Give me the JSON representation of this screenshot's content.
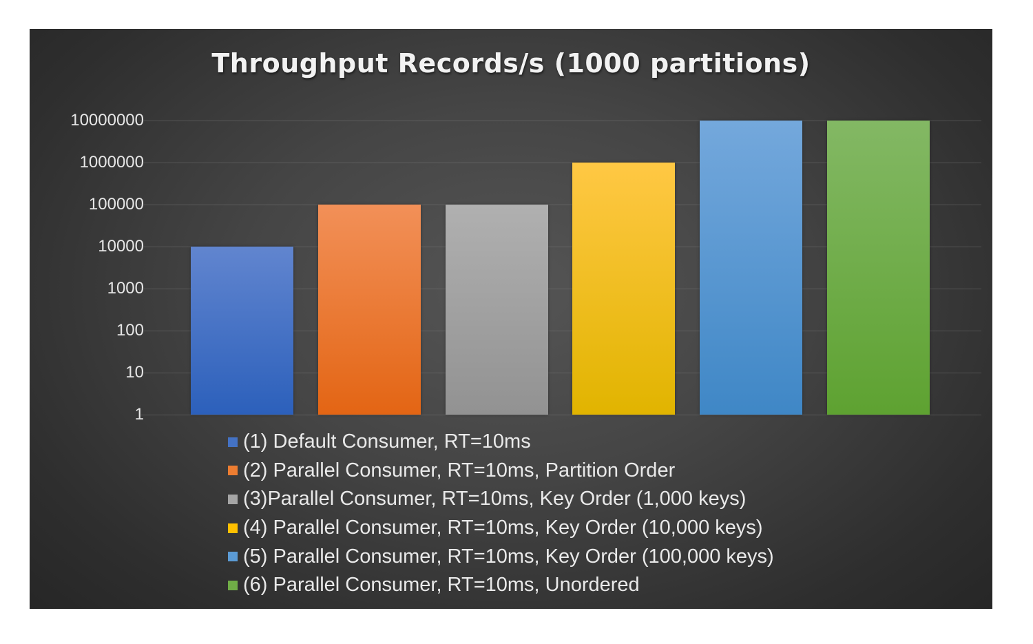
{
  "chart_data": {
    "type": "bar",
    "title": "Throughput Records/s (1000 partitions)",
    "xlabel": "",
    "ylabel": "",
    "yscale": "log",
    "ylim": [
      1,
      10000000
    ],
    "yticks": [
      "10000000",
      "1000000",
      "100000",
      "10000",
      "1000",
      "100",
      "10",
      "1"
    ],
    "grid": true,
    "legend_position": "bottom",
    "series": [
      {
        "name": "(1) Default Consumer, RT=10ms",
        "value": 10000,
        "color": "#4472C4"
      },
      {
        "name": "(2) Parallel Consumer, RT=10ms, Partition Order",
        "value": 100000,
        "color": "#ED7D31"
      },
      {
        "name": "(3)Parallel Consumer, RT=10ms, Key Order (1,000 keys)",
        "value": 100000,
        "color": "#A5A5A5"
      },
      {
        "name": "(4) Parallel Consumer, RT=10ms, Key Order (10,000 keys)",
        "value": 1000000,
        "color": "#FFC000"
      },
      {
        "name": "(5) Parallel Consumer, RT=10ms, Key Order (100,000 keys)",
        "value": 10000000,
        "color": "#5B9BD5"
      },
      {
        "name": "(6) Parallel Consumer, RT=10ms, Unordered",
        "value": 10000000,
        "color": "#70AD47"
      }
    ]
  },
  "gradients": [
    [
      "#6185cf",
      "#2c60bb"
    ],
    [
      "#f29058",
      "#e36514"
    ],
    [
      "#b0b0b0",
      "#929292"
    ],
    [
      "#ffc844",
      "#e1b400"
    ],
    [
      "#74a8dc",
      "#3f87c6"
    ],
    [
      "#83b864",
      "#5ea231"
    ]
  ]
}
